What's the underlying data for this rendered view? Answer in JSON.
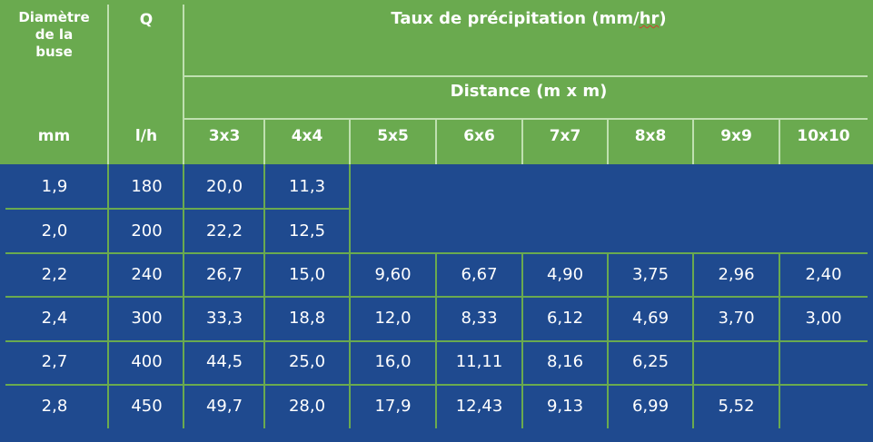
{
  "header": {
    "col1": [
      "Diamètre",
      "de la",
      "buse"
    ],
    "col1_unit": "mm",
    "col2": "Q",
    "col2_unit": "l/h",
    "title_prefix": "Taux de précipitation (mm/",
    "title_underlined": "hr",
    "title_suffix": ")",
    "subtitle": "Distance (m x m)",
    "distances": [
      "3x3",
      "4x4",
      "5x5",
      "6x6",
      "7x7",
      "8x8",
      "9x9",
      "10x10"
    ]
  },
  "rows": [
    {
      "diam": "1,9",
      "q": "180",
      "values": [
        "20,0",
        "11,3",
        "",
        "",
        "",
        "",
        "",
        ""
      ]
    },
    {
      "diam": "2,0",
      "q": "200",
      "values": [
        "22,2",
        "12,5",
        "",
        "",
        "",
        "",
        "",
        ""
      ]
    },
    {
      "diam": "2,2",
      "q": "240",
      "values": [
        "26,7",
        "15,0",
        "9,60",
        "6,67",
        "4,90",
        "3,75",
        "2,96",
        "2,40"
      ]
    },
    {
      "diam": "2,4",
      "q": "300",
      "values": [
        "33,3",
        "18,8",
        "12,0",
        "8,33",
        "6,12",
        "4,69",
        "3,70",
        "3,00"
      ]
    },
    {
      "diam": "2,7",
      "q": "400",
      "values": [
        "44,5",
        "25,0",
        "16,0",
        "11,11",
        "8,16",
        "6,25",
        "",
        ""
      ]
    },
    {
      "diam": "2,8",
      "q": "450",
      "values": [
        "49,7",
        "28,0",
        "17,9",
        "12,43",
        "9,13",
        "6,99",
        "5,52",
        ""
      ]
    }
  ],
  "colors": {
    "header_bg": "#6aaa4f",
    "body_bg": "#1f4a8f",
    "text": "#ffffff"
  }
}
